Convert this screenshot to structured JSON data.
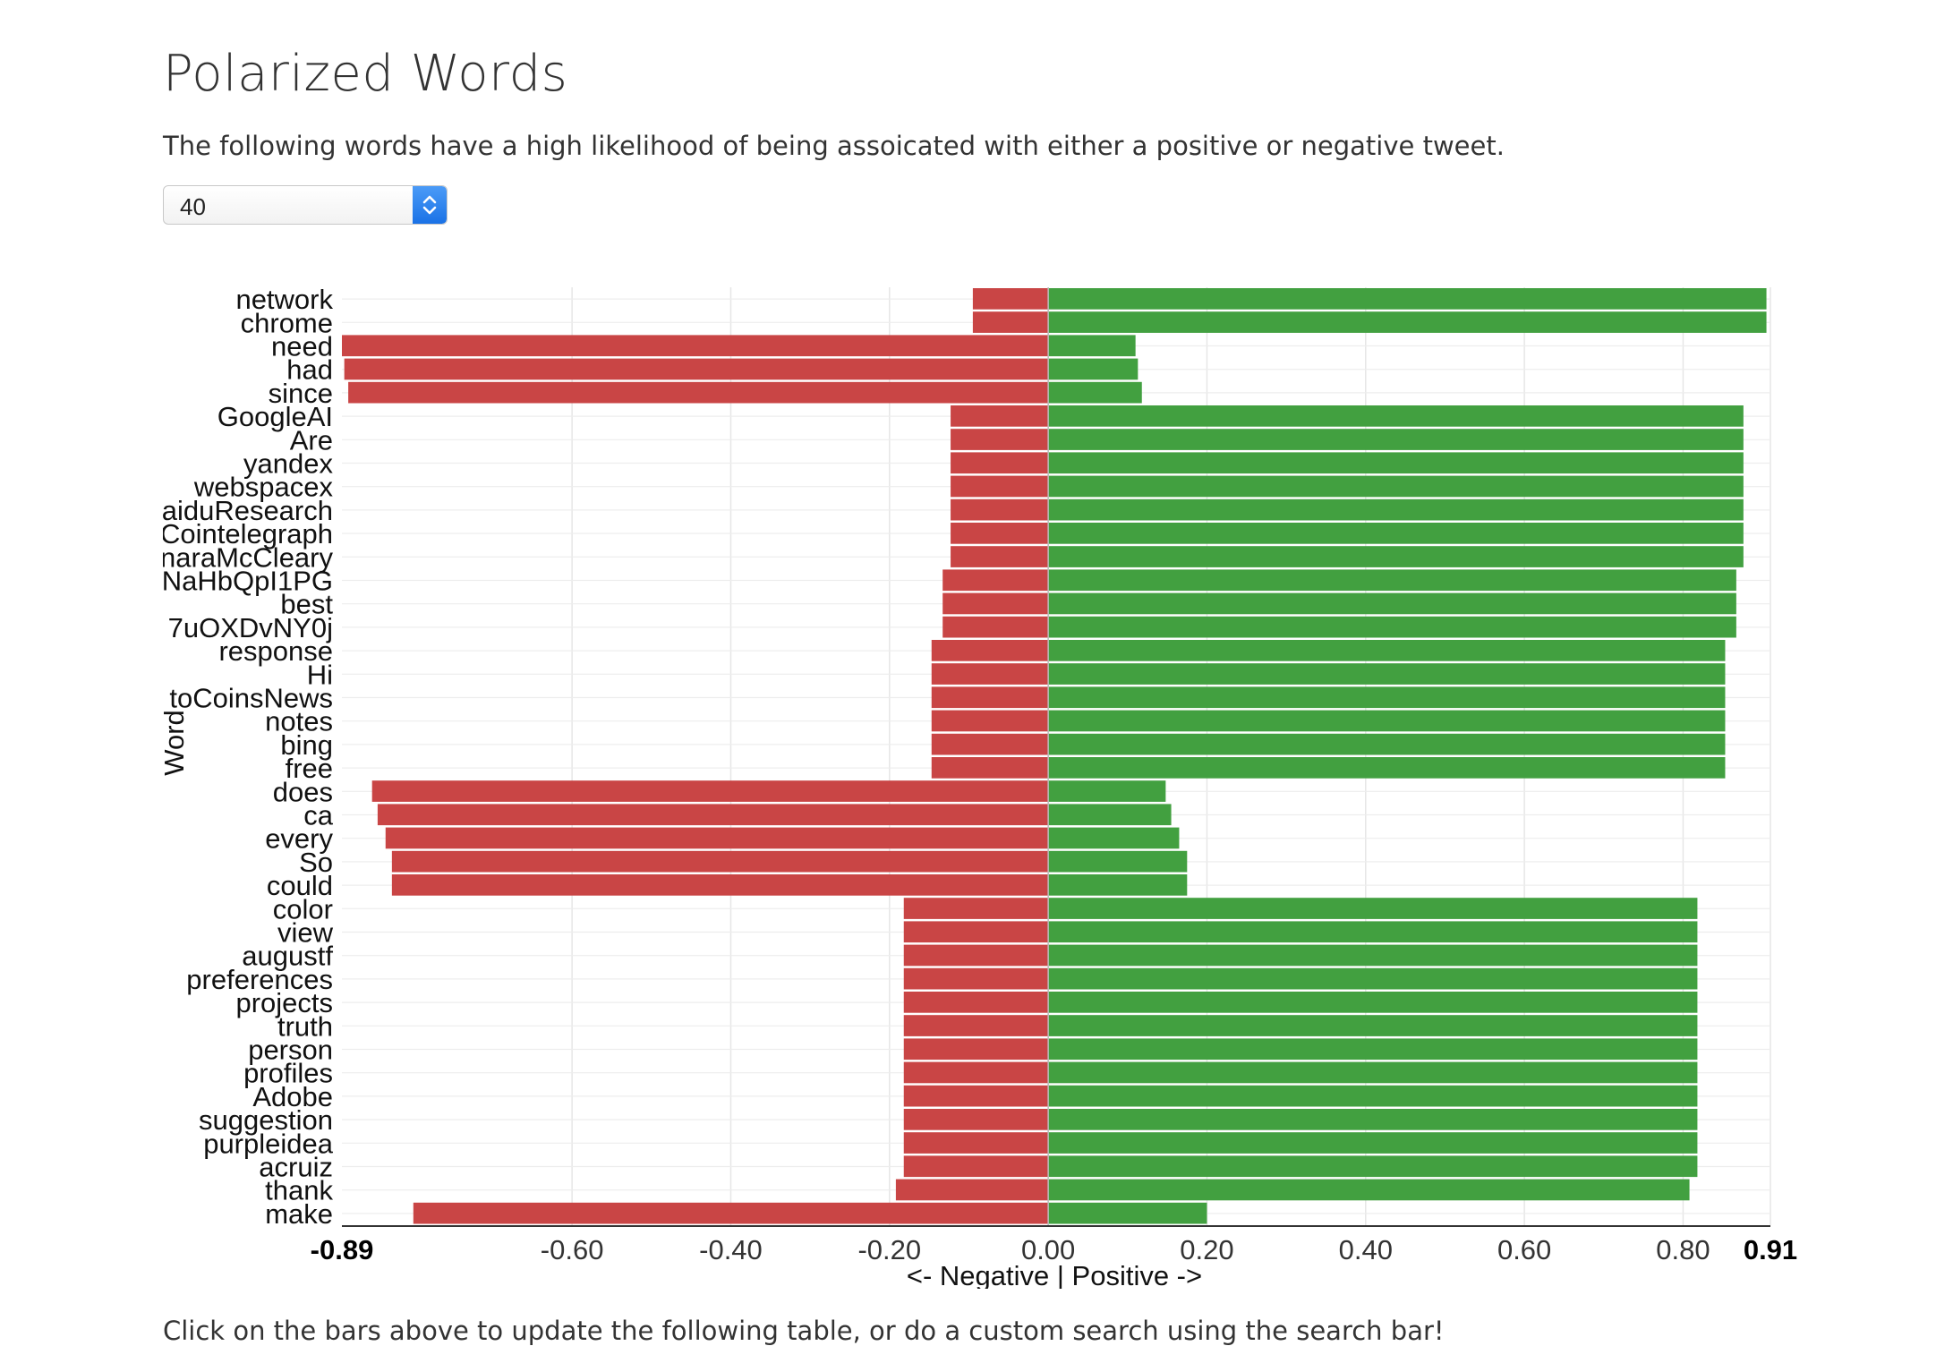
{
  "header": {
    "title": "Polarized Words",
    "description": "The following words have a high likelihood of being assoicated with either a positive or negative tweet."
  },
  "selector": {
    "value": "40"
  },
  "footer": {
    "text": "Click on the bars above to update the following table, or do a custom search using the search bar!"
  },
  "chart_data": {
    "type": "bar",
    "orientation": "horizontal",
    "ylabel": "Word",
    "xlabel": "<- Negative | Positive ->",
    "xlim": [
      -0.89,
      0.91
    ],
    "x_ticks": [
      "-0.89",
      "-0.60",
      "-0.40",
      "-0.20",
      "0.00",
      "0.20",
      "0.40",
      "0.60",
      "0.80",
      "0.91"
    ],
    "grid": true,
    "colors": {
      "negative": "#c94545",
      "positive": "#42a040"
    },
    "categories": [
      "network",
      "chrome",
      "need",
      "had",
      "since",
      "GoogleAI",
      "Are",
      "yandex",
      "webspacex",
      "aiduResearch",
      "Cointelegraph",
      "naraMcCleary",
      "NaHbQpI1PG",
      "best",
      "7uOXDvNY0j",
      "response",
      "Hi",
      "toCoinsNews",
      "notes",
      "bing",
      "free",
      "does",
      "ca",
      "every",
      "So",
      "could",
      "color",
      "view",
      "augustf",
      "preferences",
      "projects",
      "truth",
      "person",
      "profiles",
      "Adobe",
      "suggestion",
      "purpleidea",
      "acruiz",
      "thank",
      "make"
    ],
    "series": [
      {
        "name": "negative",
        "values": [
          -0.095,
          -0.095,
          -0.89,
          -0.887,
          -0.882,
          -0.123,
          -0.123,
          -0.123,
          -0.123,
          -0.123,
          -0.123,
          -0.123,
          -0.133,
          -0.133,
          -0.133,
          -0.147,
          -0.147,
          -0.147,
          -0.147,
          -0.147,
          -0.147,
          -0.852,
          -0.845,
          -0.835,
          -0.827,
          -0.827,
          -0.182,
          -0.182,
          -0.182,
          -0.182,
          -0.182,
          -0.182,
          -0.182,
          -0.182,
          -0.182,
          -0.182,
          -0.182,
          -0.182,
          -0.192,
          -0.8
        ]
      },
      {
        "name": "positive",
        "values": [
          0.905,
          0.905,
          0.11,
          0.113,
          0.118,
          0.876,
          0.876,
          0.876,
          0.876,
          0.876,
          0.876,
          0.876,
          0.867,
          0.867,
          0.867,
          0.853,
          0.853,
          0.853,
          0.853,
          0.853,
          0.853,
          0.148,
          0.155,
          0.165,
          0.175,
          0.175,
          0.818,
          0.818,
          0.818,
          0.818,
          0.818,
          0.818,
          0.818,
          0.818,
          0.818,
          0.818,
          0.818,
          0.818,
          0.808,
          0.2
        ]
      }
    ]
  }
}
